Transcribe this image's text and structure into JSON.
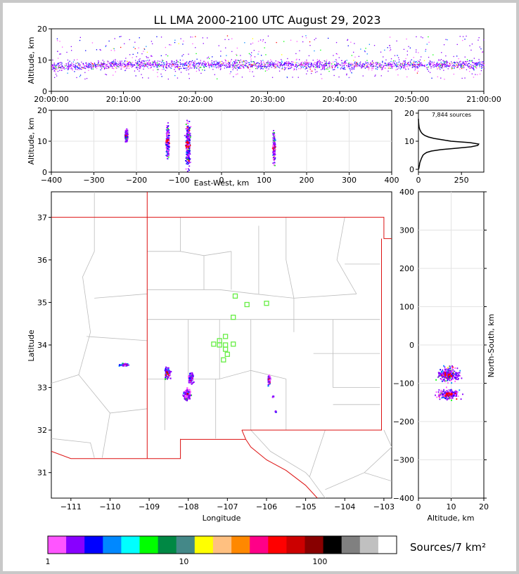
{
  "chart_data": {
    "title": "LL LMA 2000-2100 UTC August 29, 2023",
    "type": "heatmap",
    "panels": {
      "time_height": {
        "ylabel": "Altitude, km",
        "ylim": [
          0,
          20
        ],
        "yticks": [
          "0",
          "10",
          "20"
        ],
        "xticks": [
          "20:00:00",
          "20:10:00",
          "20:20:00",
          "20:30:00",
          "20:40:00",
          "20:50:00",
          "21:00:00"
        ]
      },
      "ew_height": {
        "xlabel": "East-West, km",
        "ylabel": "Altitude, km",
        "xlim": [
          -400,
          400
        ],
        "ylim": [
          0,
          20
        ],
        "xticks": [
          "−400",
          "−300",
          "−200",
          "−100",
          "0",
          "100",
          "200",
          "300",
          "400"
        ],
        "yticks": [
          "0",
          "10",
          "20"
        ],
        "clusters_x_km": [
          -225,
          -128,
          -80,
          122
        ]
      },
      "histogram": {
        "annotation": "7,844 sources",
        "xticks": [
          "0",
          "250"
        ],
        "yticks": [
          "0",
          "10",
          "20"
        ],
        "profile": [
          [
            0,
            1
          ],
          [
            0.5,
            3
          ],
          [
            1,
            4
          ],
          [
            1.5,
            6
          ],
          [
            2,
            7
          ],
          [
            2.5,
            9
          ],
          [
            3,
            12
          ],
          [
            3.5,
            15
          ],
          [
            4,
            18
          ],
          [
            4.5,
            22
          ],
          [
            5,
            26
          ],
          [
            5.5,
            35
          ],
          [
            6,
            48
          ],
          [
            6.5,
            75
          ],
          [
            7,
            130
          ],
          [
            7.5,
            220
          ],
          [
            8,
            305
          ],
          [
            8.5,
            345
          ],
          [
            9,
            350
          ],
          [
            9.5,
            300
          ],
          [
            10,
            190
          ],
          [
            10.5,
            140
          ],
          [
            11,
            90
          ],
          [
            11.5,
            58
          ],
          [
            12,
            38
          ],
          [
            12.5,
            26
          ],
          [
            13,
            18
          ],
          [
            13.5,
            13
          ],
          [
            14,
            9
          ],
          [
            14.5,
            6
          ],
          [
            15,
            4
          ],
          [
            16,
            2
          ],
          [
            17,
            1
          ],
          [
            18,
            0
          ]
        ]
      },
      "map": {
        "xlabel": "Longitude",
        "ylabel": "Latitude",
        "xlim": [
          -111.5,
          -102.8
        ],
        "ylim": [
          30.4,
          37.6
        ],
        "xticks": [
          "−111",
          "−110",
          "−109",
          "−108",
          "−107",
          "−106",
          "−105",
          "−104",
          "−103"
        ],
        "yticks": [
          "31",
          "32",
          "33",
          "34",
          "35",
          "36",
          "37"
        ],
        "stations": [
          [
            -106.8,
            35.15
          ],
          [
            -106.5,
            34.95
          ],
          [
            -106.0,
            34.98
          ],
          [
            -106.85,
            34.65
          ],
          [
            -107.05,
            34.2
          ],
          [
            -107.2,
            34.1
          ],
          [
            -107.35,
            34.02
          ],
          [
            -107.2,
            34.0
          ],
          [
            -107.05,
            34.0
          ],
          [
            -106.85,
            34.02
          ],
          [
            -107.05,
            33.9
          ],
          [
            -107.0,
            33.78
          ],
          [
            -107.1,
            33.65
          ]
        ],
        "clusters": [
          [
            -109.65,
            33.55
          ],
          [
            -108.55,
            33.35
          ],
          [
            -107.95,
            33.25
          ],
          [
            -108.05,
            32.85
          ],
          [
            -105.95,
            33.2
          ]
        ]
      },
      "ns_altitude": {
        "xlabel": "Altitude, km",
        "ylabel": "North-South, km",
        "xlim": [
          0,
          20
        ],
        "ylim": [
          -400,
          400
        ],
        "xticks": [
          "0",
          "10",
          "20"
        ],
        "yticks": [
          "−400",
          "−300",
          "−200",
          "−100",
          "0",
          "100",
          "200",
          "300",
          "400"
        ]
      }
    },
    "colorbar": {
      "label": "Sources/7 km²",
      "ticks": [
        "1",
        "10",
        "100"
      ],
      "colors": [
        "#ff55ff",
        "#8800ff",
        "#0000ff",
        "#0088ff",
        "#00ffff",
        "#00ff00",
        "#008844",
        "#448888",
        "#ffff00",
        "#ffc080",
        "#ff8800",
        "#ff0088",
        "#ff0000",
        "#cc0000",
        "#880000",
        "#000000",
        "#808080",
        "#c0c0c0",
        "#ffffff"
      ]
    }
  }
}
